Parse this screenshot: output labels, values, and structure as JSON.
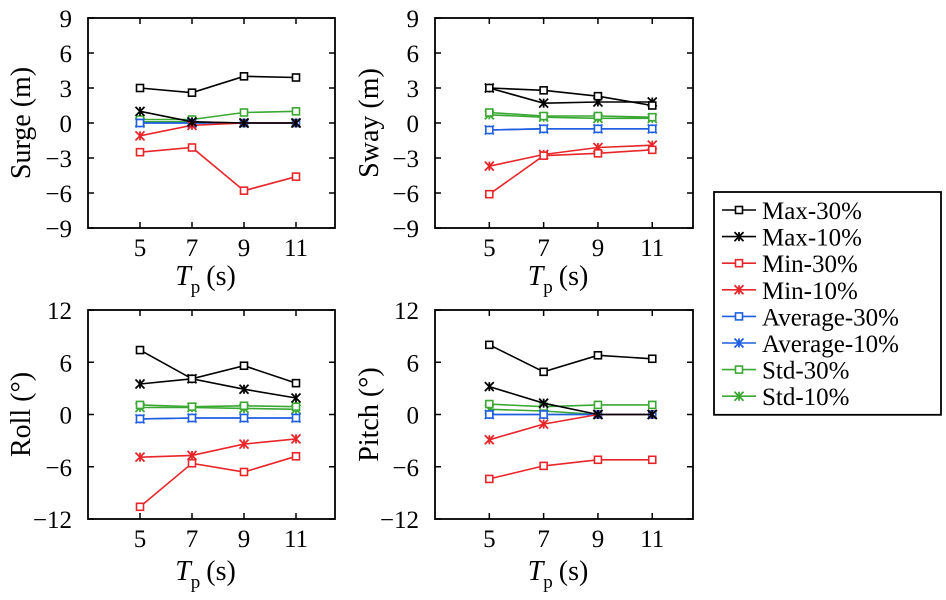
{
  "legend": {
    "entries": [
      {
        "name": "Max-30%",
        "color": "#000000",
        "marker": "square"
      },
      {
        "name": "Max-10%",
        "color": "#000000",
        "marker": "asterisk"
      },
      {
        "name": "Min-30%",
        "color": "#e8262a",
        "marker": "square"
      },
      {
        "name": "Min-10%",
        "color": "#e8262a",
        "marker": "asterisk"
      },
      {
        "name": "Average-30%",
        "color": "#1f5fe0",
        "marker": "square"
      },
      {
        "name": "Average-10%",
        "color": "#1f5fe0",
        "marker": "asterisk"
      },
      {
        "name": "Std-30%",
        "color": "#3aa832",
        "marker": "square"
      },
      {
        "name": "Std-10%",
        "color": "#3aa832",
        "marker": "asterisk"
      }
    ]
  },
  "chart_data": [
    {
      "type": "line",
      "id": "surge",
      "ylabel": "Surge (m)",
      "xlabel_main": "T",
      "xlabel_sub": "p",
      "xlabel_unit": "(s)",
      "x": [
        5,
        7,
        9,
        11
      ],
      "xticks": [
        5,
        7,
        9,
        11
      ],
      "xlim": [
        3,
        12.5
      ],
      "ylim": [
        -9,
        9
      ],
      "yticks": [
        -9,
        -6,
        -3,
        0,
        3,
        6,
        9
      ],
      "yticklabels": [
        "−9",
        "−6",
        "−3",
        "0",
        "3",
        "6",
        "9"
      ],
      "series": [
        {
          "name": "Max-30%",
          "values": [
            3.0,
            2.6,
            4.0,
            3.9
          ]
        },
        {
          "name": "Max-10%",
          "values": [
            1.0,
            0.1,
            0.0,
            0.0
          ]
        },
        {
          "name": "Min-30%",
          "values": [
            -2.5,
            -2.1,
            -5.8,
            -4.6
          ]
        },
        {
          "name": "Min-10%",
          "values": [
            -1.1,
            -0.2,
            0.0,
            0.0
          ]
        },
        {
          "name": "Average-30%",
          "values": [
            0.0,
            0.0,
            0.0,
            0.0
          ]
        },
        {
          "name": "Average-10%",
          "values": [
            0.0,
            0.0,
            0.0,
            0.0
          ]
        },
        {
          "name": "Std-30%",
          "values": [
            0.3,
            0.3,
            0.9,
            1.0
          ]
        },
        {
          "name": "Std-10%",
          "values": [
            0.1,
            0.1,
            0.0,
            0.0
          ]
        }
      ]
    },
    {
      "type": "line",
      "id": "sway",
      "ylabel": "Sway (m)",
      "xlabel_main": "T",
      "xlabel_sub": "p",
      "xlabel_unit": "(s)",
      "x": [
        5,
        7,
        9,
        11
      ],
      "xticks": [
        5,
        7,
        9,
        11
      ],
      "xlim": [
        3,
        12.5
      ],
      "ylim": [
        -9,
        9
      ],
      "yticks": [
        -9,
        -6,
        -3,
        0,
        3,
        6,
        9
      ],
      "yticklabels": [
        "−9",
        "−6",
        "−3",
        "0",
        "3",
        "6",
        "9"
      ],
      "series": [
        {
          "name": "Max-30%",
          "values": [
            3.0,
            2.8,
            2.3,
            1.5
          ]
        },
        {
          "name": "Max-10%",
          "values": [
            3.0,
            1.7,
            1.8,
            1.8
          ]
        },
        {
          "name": "Min-30%",
          "values": [
            -6.1,
            -2.8,
            -2.6,
            -2.3
          ]
        },
        {
          "name": "Min-10%",
          "values": [
            -3.7,
            -2.7,
            -2.1,
            -1.9
          ]
        },
        {
          "name": "Average-30%",
          "values": [
            -0.6,
            -0.5,
            -0.5,
            -0.5
          ]
        },
        {
          "name": "Average-10%",
          "values": [
            -0.6,
            -0.5,
            -0.5,
            -0.5
          ]
        },
        {
          "name": "Std-30%",
          "values": [
            0.9,
            0.6,
            0.6,
            0.5
          ]
        },
        {
          "name": "Std-10%",
          "values": [
            0.7,
            0.5,
            0.4,
            0.4
          ]
        }
      ]
    },
    {
      "type": "line",
      "id": "roll",
      "ylabel": "Roll (°)",
      "xlabel_main": "T",
      "xlabel_sub": "p",
      "xlabel_unit": "(s)",
      "x": [
        5,
        7,
        9,
        11
      ],
      "xticks": [
        5,
        7,
        9,
        11
      ],
      "xlim": [
        3,
        12.5
      ],
      "ylim": [
        -12,
        12
      ],
      "yticks": [
        -12,
        -6,
        0,
        6,
        12
      ],
      "yticklabels": [
        "−12",
        "−6",
        "0",
        "6",
        "12"
      ],
      "series": [
        {
          "name": "Max-30%",
          "values": [
            7.4,
            4.1,
            5.6,
            3.6
          ]
        },
        {
          "name": "Max-10%",
          "values": [
            3.5,
            4.1,
            2.9,
            1.9
          ]
        },
        {
          "name": "Min-30%",
          "values": [
            -10.6,
            -5.6,
            -6.6,
            -4.8
          ]
        },
        {
          "name": "Min-10%",
          "values": [
            -4.9,
            -4.7,
            -3.4,
            -2.8
          ]
        },
        {
          "name": "Average-30%",
          "values": [
            -0.5,
            -0.4,
            -0.4,
            -0.4
          ]
        },
        {
          "name": "Average-10%",
          "values": [
            -0.5,
            -0.4,
            -0.4,
            -0.4
          ]
        },
        {
          "name": "Std-30%",
          "values": [
            1.1,
            0.9,
            1.0,
            0.9
          ]
        },
        {
          "name": "Std-10%",
          "values": [
            0.8,
            0.8,
            0.7,
            0.6
          ]
        }
      ]
    },
    {
      "type": "line",
      "id": "pitch",
      "ylabel": "Pitch (°)",
      "xlabel_main": "T",
      "xlabel_sub": "p",
      "xlabel_unit": "(s)",
      "x": [
        5,
        7,
        9,
        11
      ],
      "xticks": [
        5,
        7,
        9,
        11
      ],
      "xlim": [
        3,
        12.5
      ],
      "ylim": [
        -12,
        12
      ],
      "yticks": [
        -12,
        -6,
        0,
        6,
        12
      ],
      "yticklabels": [
        "−12",
        "−6",
        "0",
        "6",
        "12"
      ],
      "series": [
        {
          "name": "Max-30%",
          "values": [
            8.0,
            4.9,
            6.8,
            6.4
          ]
        },
        {
          "name": "Max-10%",
          "values": [
            3.2,
            1.3,
            0.0,
            0.0
          ]
        },
        {
          "name": "Min-30%",
          "values": [
            -7.4,
            -5.9,
            -5.2,
            -5.2
          ]
        },
        {
          "name": "Min-10%",
          "values": [
            -2.9,
            -1.1,
            0.0,
            0.0
          ]
        },
        {
          "name": "Average-30%",
          "values": [
            0.0,
            0.0,
            0.0,
            0.0
          ]
        },
        {
          "name": "Average-10%",
          "values": [
            0.0,
            0.0,
            0.0,
            0.0
          ]
        },
        {
          "name": "Std-30%",
          "values": [
            1.2,
            0.9,
            1.1,
            1.1
          ]
        },
        {
          "name": "Std-10%",
          "values": [
            0.6,
            0.4,
            0.0,
            0.0
          ]
        }
      ]
    }
  ]
}
